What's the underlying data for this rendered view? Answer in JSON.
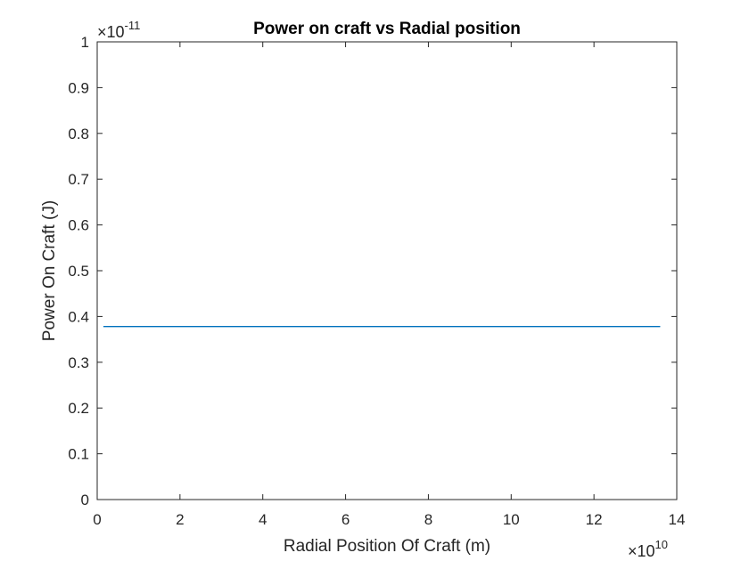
{
  "chart_data": {
    "type": "line",
    "title": "Power on craft vs Radial position",
    "xlabel": "Radial Position Of Craft (m)",
    "ylabel": "Power On Craft (J)",
    "xlim": [
      0,
      14
    ],
    "ylim": [
      0,
      1
    ],
    "x_ticks": [
      "0",
      "2",
      "4",
      "6",
      "8",
      "10",
      "12",
      "14"
    ],
    "y_ticks": [
      "0",
      "0.1",
      "0.2",
      "0.3",
      "0.4",
      "0.5",
      "0.6",
      "0.7",
      "0.8",
      "0.9",
      "1"
    ],
    "x_multiplier": {
      "base": "×10",
      "exponent": "10"
    },
    "y_multiplier": {
      "base": "×10",
      "exponent": "-11"
    },
    "grid": false,
    "box": true,
    "series": [
      {
        "color": "#0072BD",
        "x": [
          0.15,
          13.6
        ],
        "y": [
          0.378,
          0.378
        ]
      }
    ]
  }
}
